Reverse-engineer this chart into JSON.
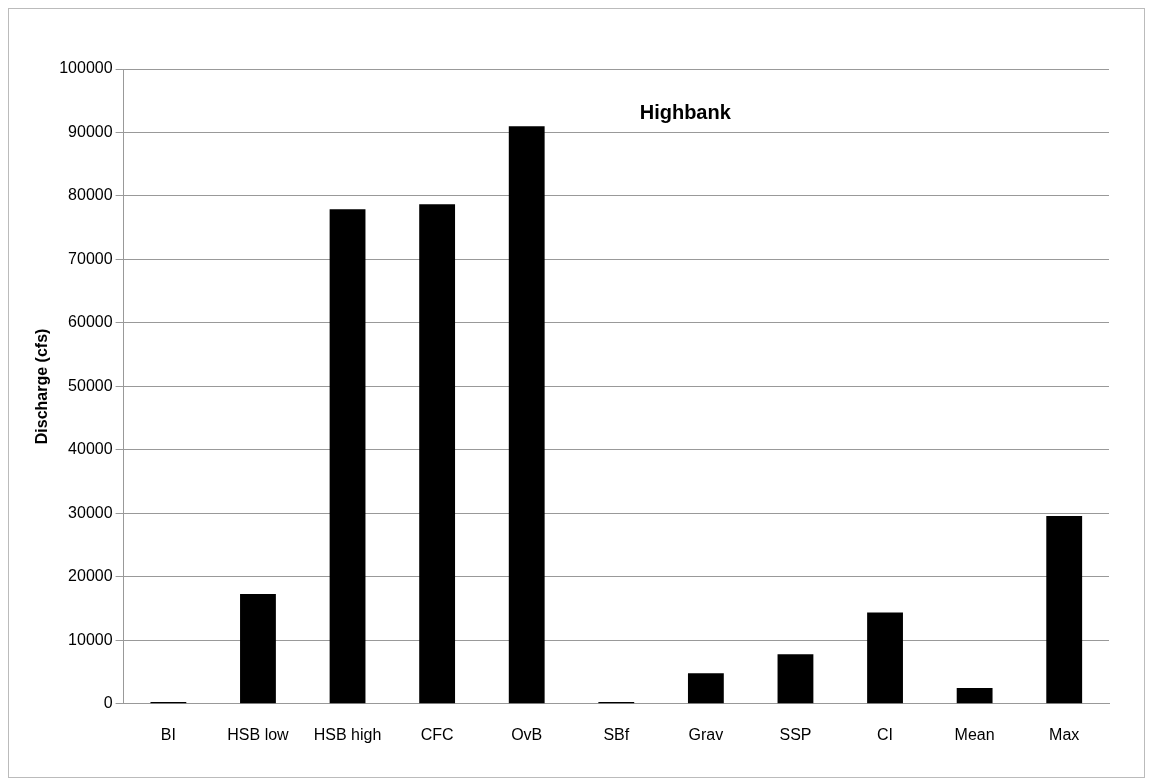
{
  "chart_data": {
    "type": "bar",
    "title": "Highbank",
    "ylabel": "Discharge (cfs)",
    "categories": [
      "BI",
      "HSB low",
      "HSB high",
      "CFC",
      "OvB",
      "SBf",
      "Grav",
      "SSP",
      "CI",
      "Mean",
      "Max"
    ],
    "values": [
      300,
      17300,
      77900,
      78700,
      91000,
      300,
      4800,
      7800,
      14400,
      2500,
      29600
    ],
    "color": "#000000",
    "ylim": [
      0,
      100000
    ],
    "yticks": [
      0,
      10000,
      20000,
      30000,
      40000,
      50000,
      60000,
      70000,
      80000,
      90000,
      100000
    ],
    "grid": "y",
    "legend": false
  }
}
